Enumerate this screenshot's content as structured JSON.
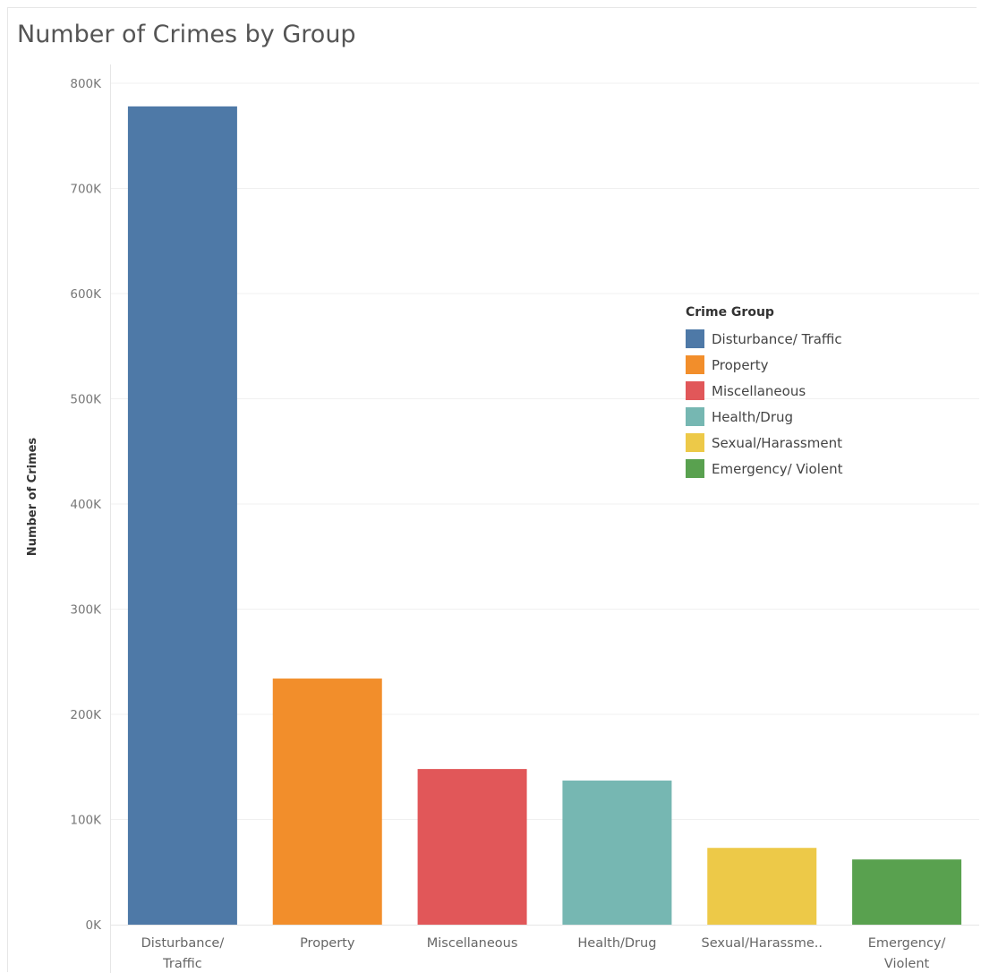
{
  "chart_data": {
    "type": "bar",
    "title": "Number of Crimes by Group",
    "ylabel": "Number of Crimes",
    "xlabel": "",
    "categories": [
      [
        "Disturbance/",
        "Traffic"
      ],
      [
        "Property"
      ],
      [
        "Miscellaneous"
      ],
      [
        "Health/Drug"
      ],
      [
        "Sexual/Harassme.."
      ],
      [
        "Emergency/",
        "Violent"
      ]
    ],
    "values": [
      778000,
      234000,
      148000,
      137000,
      73000,
      62000
    ],
    "colors": [
      "#4e79a7",
      "#f28e2b",
      "#e15759",
      "#76b7b2",
      "#edc948",
      "#59a14f"
    ],
    "ylim": [
      0,
      800000
    ],
    "yticks": [
      {
        "value": 0,
        "label": "0K"
      },
      {
        "value": 100000,
        "label": "100K"
      },
      {
        "value": 200000,
        "label": "200K"
      },
      {
        "value": 300000,
        "label": "300K"
      },
      {
        "value": 400000,
        "label": "400K"
      },
      {
        "value": 500000,
        "label": "500K"
      },
      {
        "value": 600000,
        "label": "600K"
      },
      {
        "value": 700000,
        "label": "700K"
      },
      {
        "value": 800000,
        "label": "800K"
      }
    ],
    "grid": true,
    "legend": {
      "title": "Crime Group",
      "placement": "right",
      "entries": [
        {
          "label": "Disturbance/ Traffic",
          "color": "#4e79a7"
        },
        {
          "label": "Property",
          "color": "#f28e2b"
        },
        {
          "label": "Miscellaneous",
          "color": "#e15759"
        },
        {
          "label": "Health/Drug",
          "color": "#76b7b2"
        },
        {
          "label": "Sexual/Harassment",
          "color": "#edc948"
        },
        {
          "label": "Emergency/ Violent",
          "color": "#59a14f"
        }
      ]
    }
  }
}
